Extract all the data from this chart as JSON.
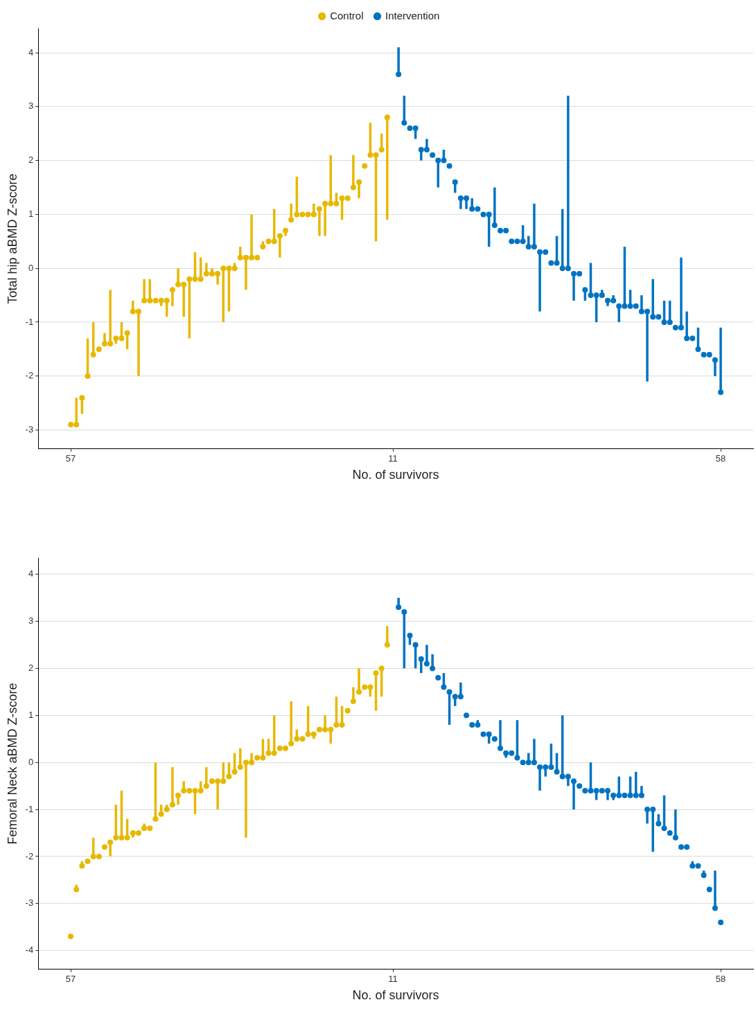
{
  "chart_data": [
    {
      "type": "scatter",
      "xlabel": "No. of survivors",
      "ylabel": "Total hip aBMD Z-score",
      "legend": "top",
      "grid": "y",
      "marker": "circle",
      "ylim": [
        -3.35,
        4.45
      ],
      "yticks": [
        -3,
        -2,
        -1,
        0,
        1,
        2,
        3,
        4
      ],
      "categories": [
        "57",
        null,
        null,
        null,
        null,
        null,
        null,
        null,
        null,
        null,
        null,
        null,
        null,
        null,
        null,
        null,
        null,
        null,
        null,
        null,
        null,
        null,
        null,
        null,
        null,
        null,
        null,
        null,
        null,
        null,
        null,
        null,
        null,
        null,
        null,
        null,
        null,
        null,
        null,
        null,
        null,
        null,
        null,
        null,
        null,
        null,
        null,
        null,
        null,
        null,
        null,
        null,
        null,
        null,
        null,
        null,
        null,
        "11",
        null,
        null,
        null,
        null,
        null,
        null,
        null,
        null,
        null,
        null,
        null,
        null,
        null,
        null,
        null,
        null,
        null,
        null,
        null,
        null,
        null,
        null,
        null,
        null,
        null,
        null,
        null,
        null,
        null,
        null,
        null,
        null,
        null,
        null,
        null,
        null,
        null,
        null,
        null,
        null,
        null,
        null,
        null,
        null,
        null,
        null,
        null,
        null,
        null,
        null,
        null,
        null,
        null,
        null,
        null,
        null,
        null,
        "58"
      ],
      "series": [
        {
          "name": "Control",
          "color": "#e7b800",
          "values": [
            -2.9,
            -2.9,
            -2.4,
            -2.0,
            -1.6,
            -1.5,
            -1.4,
            -1.4,
            -1.3,
            -1.3,
            -1.2,
            -0.8,
            -0.8,
            -0.6,
            -0.6,
            -0.6,
            -0.6,
            -0.6,
            -0.4,
            -0.3,
            -0.3,
            -0.2,
            -0.2,
            -0.2,
            -0.1,
            -0.1,
            -0.1,
            0.0,
            0.0,
            0.0,
            0.2,
            0.2,
            0.2,
            0.2,
            0.4,
            0.5,
            0.5,
            0.6,
            0.7,
            0.9,
            1.0,
            1.0,
            1.0,
            1.0,
            1.1,
            1.2,
            1.2,
            1.2,
            1.3,
            1.3,
            1.5,
            1.6,
            1.9,
            2.1,
            2.1,
            2.2,
            2.8,
            null,
            null,
            null,
            null,
            null,
            null,
            null,
            null,
            null,
            null,
            null,
            null,
            null,
            null,
            null,
            null,
            null,
            null,
            null,
            null,
            null,
            null,
            null,
            null,
            null,
            null,
            null,
            null,
            null,
            null,
            null,
            null,
            null,
            null,
            null,
            null,
            null,
            null,
            null,
            null,
            null,
            null,
            null,
            null,
            null,
            null,
            null,
            null,
            null,
            null,
            null,
            null,
            null,
            null,
            null,
            null,
            null,
            null,
            null
          ],
          "errors": [
            null,
            [
              -2.9,
              -2.4
            ],
            [
              -2.7,
              -2.4
            ],
            [
              -2.0,
              -1.3
            ],
            [
              -1.6,
              -1.0
            ],
            null,
            [
              -1.4,
              -1.2
            ],
            [
              -1.4,
              -0.4
            ],
            [
              -1.4,
              -1.3
            ],
            [
              -1.3,
              -1.0
            ],
            [
              -1.5,
              -1.2
            ],
            [
              -0.8,
              -0.6
            ],
            [
              -2.0,
              -0.8
            ],
            [
              -0.6,
              -0.2
            ],
            [
              -0.6,
              -0.2
            ],
            null,
            [
              -0.7,
              -0.6
            ],
            [
              -0.9,
              -0.6
            ],
            [
              -0.7,
              -0.4
            ],
            [
              -0.3,
              0.0
            ],
            [
              -0.9,
              -0.3
            ],
            [
              -1.3,
              -0.2
            ],
            [
              -0.2,
              0.3
            ],
            [
              -0.2,
              0.2
            ],
            [
              -0.1,
              0.1
            ],
            [
              -0.1,
              0.0
            ],
            [
              -0.3,
              -0.1
            ],
            [
              -1.0,
              0.0
            ],
            [
              -0.8,
              0.0
            ],
            [
              0.0,
              0.1
            ],
            [
              0.2,
              0.4
            ],
            [
              -0.4,
              0.2
            ],
            [
              0.2,
              1.0
            ],
            null,
            [
              0.4,
              0.5
            ],
            null,
            [
              0.5,
              1.1
            ],
            [
              0.2,
              0.6
            ],
            [
              0.6,
              0.7
            ],
            [
              0.9,
              1.2
            ],
            [
              1.0,
              1.7
            ],
            null,
            null,
            [
              1.0,
              1.2
            ],
            [
              0.6,
              1.1
            ],
            [
              0.6,
              1.2
            ],
            [
              1.2,
              2.1
            ],
            [
              1.2,
              1.4
            ],
            [
              0.9,
              1.3
            ],
            null,
            [
              1.5,
              2.1
            ],
            [
              1.3,
              1.6
            ],
            null,
            [
              2.1,
              2.7
            ],
            [
              0.5,
              2.1
            ],
            [
              2.2,
              2.5
            ],
            [
              0.9,
              2.8
            ],
            null,
            null,
            null,
            null,
            null,
            null,
            null,
            null,
            null,
            null,
            null,
            null,
            null,
            null,
            null,
            null,
            null,
            null,
            null,
            null,
            null,
            null,
            null,
            null,
            null,
            null,
            null,
            null,
            null,
            null,
            null,
            null,
            null,
            null,
            null,
            null,
            null,
            null,
            null,
            null,
            null,
            null,
            null,
            null,
            null,
            null,
            null,
            null,
            null,
            null,
            null,
            null,
            null,
            null,
            null,
            null,
            null,
            null,
            null
          ]
        },
        {
          "name": "Intervention",
          "color": "#0073c2",
          "values": [
            null,
            null,
            null,
            null,
            null,
            null,
            null,
            null,
            null,
            null,
            null,
            null,
            null,
            null,
            null,
            null,
            null,
            null,
            null,
            null,
            null,
            null,
            null,
            null,
            null,
            null,
            null,
            null,
            null,
            null,
            null,
            null,
            null,
            null,
            null,
            null,
            null,
            null,
            null,
            null,
            null,
            null,
            null,
            null,
            null,
            null,
            null,
            null,
            null,
            null,
            null,
            null,
            null,
            null,
            null,
            null,
            null,
            null,
            3.6,
            2.7,
            2.6,
            2.6,
            2.2,
            2.2,
            2.1,
            2.0,
            2.0,
            1.9,
            1.6,
            1.3,
            1.3,
            1.1,
            1.1,
            1.0,
            1.0,
            0.8,
            0.7,
            0.7,
            0.5,
            0.5,
            0.5,
            0.4,
            0.4,
            0.3,
            0.3,
            0.1,
            0.1,
            0.0,
            0.0,
            -0.1,
            -0.1,
            -0.4,
            -0.5,
            -0.5,
            -0.5,
            -0.6,
            -0.6,
            -0.7,
            -0.7,
            -0.7,
            -0.7,
            -0.8,
            -0.8,
            -0.9,
            -0.9,
            -1.0,
            -1.0,
            -1.1,
            -1.1,
            -1.3,
            -1.3,
            -1.5,
            -1.6,
            -1.6,
            -1.7,
            -2.3
          ],
          "errors": [
            null,
            null,
            null,
            null,
            null,
            null,
            null,
            null,
            null,
            null,
            null,
            null,
            null,
            null,
            null,
            null,
            null,
            null,
            null,
            null,
            null,
            null,
            null,
            null,
            null,
            null,
            null,
            null,
            null,
            null,
            null,
            null,
            null,
            null,
            null,
            null,
            null,
            null,
            null,
            null,
            null,
            null,
            null,
            null,
            null,
            null,
            null,
            null,
            null,
            null,
            null,
            null,
            null,
            null,
            null,
            null,
            null,
            null,
            [
              3.6,
              4.1
            ],
            [
              2.7,
              3.2
            ],
            null,
            [
              2.4,
              2.6
            ],
            [
              2.0,
              2.2
            ],
            [
              2.2,
              2.4
            ],
            null,
            [
              1.5,
              2.0
            ],
            [
              2.0,
              2.2
            ],
            null,
            [
              1.4,
              1.6
            ],
            [
              1.1,
              1.3
            ],
            [
              1.1,
              1.3
            ],
            [
              1.1,
              1.3
            ],
            null,
            null,
            [
              0.4,
              1.0
            ],
            [
              0.8,
              1.5
            ],
            null,
            null,
            null,
            null,
            [
              0.5,
              0.8
            ],
            [
              0.4,
              0.6
            ],
            [
              0.4,
              1.2
            ],
            [
              -0.8,
              0.3
            ],
            null,
            null,
            [
              0.1,
              0.6
            ],
            [
              0.0,
              1.1
            ],
            [
              0.0,
              3.2
            ],
            [
              -0.6,
              -0.1
            ],
            null,
            [
              -0.6,
              -0.4
            ],
            [
              -0.5,
              0.1
            ],
            [
              -1.0,
              -0.5
            ],
            [
              -0.5,
              -0.4
            ],
            [
              -0.7,
              -0.6
            ],
            [
              -0.6,
              -0.5
            ],
            [
              -1.0,
              -0.7
            ],
            [
              -0.7,
              0.4
            ],
            [
              -0.7,
              -0.4
            ],
            null,
            [
              -0.8,
              -0.5
            ],
            [
              -2.1,
              -0.8
            ],
            [
              -0.9,
              -0.2
            ],
            null,
            [
              -1.0,
              -0.6
            ],
            [
              -1.0,
              -0.6
            ],
            null,
            [
              -1.1,
              0.2
            ],
            [
              -1.3,
              -0.8
            ],
            null,
            [
              -1.5,
              -1.1
            ],
            null,
            null,
            [
              -2.0,
              -1.7
            ],
            [
              -2.3,
              -1.1
            ]
          ]
        }
      ]
    },
    {
      "type": "scatter",
      "xlabel": "No. of survivors",
      "ylabel": "Femoral Neck aBMD Z-score",
      "grid": "y",
      "marker": "circle",
      "ylim": [
        -4.4,
        4.35
      ],
      "yticks": [
        -4,
        -3,
        -2,
        -1,
        0,
        1,
        2,
        3,
        4
      ],
      "categories": [
        "57",
        null,
        null,
        null,
        null,
        null,
        null,
        null,
        null,
        null,
        null,
        null,
        null,
        null,
        null,
        null,
        null,
        null,
        null,
        null,
        null,
        null,
        null,
        null,
        null,
        null,
        null,
        null,
        null,
        null,
        null,
        null,
        null,
        null,
        null,
        null,
        null,
        null,
        null,
        null,
        null,
        null,
        null,
        null,
        null,
        null,
        null,
        null,
        null,
        null,
        null,
        null,
        null,
        null,
        null,
        null,
        null,
        "11",
        null,
        null,
        null,
        null,
        null,
        null,
        null,
        null,
        null,
        null,
        null,
        null,
        null,
        null,
        null,
        null,
        null,
        null,
        null,
        null,
        null,
        null,
        null,
        null,
        null,
        null,
        null,
        null,
        null,
        null,
        null,
        null,
        null,
        null,
        null,
        null,
        null,
        null,
        null,
        null,
        null,
        null,
        null,
        null,
        null,
        null,
        null,
        null,
        null,
        null,
        null,
        null,
        null,
        null,
        null,
        null,
        null,
        "58"
      ],
      "series": [
        {
          "color": "#e7b800",
          "values": [
            -3.7,
            -2.7,
            -2.2,
            -2.1,
            -2.0,
            -2.0,
            -1.8,
            -1.7,
            -1.6,
            -1.6,
            -1.6,
            -1.5,
            -1.5,
            -1.4,
            -1.4,
            -1.2,
            -1.1,
            -1.0,
            -0.9,
            -0.7,
            -0.6,
            -0.6,
            -0.6,
            -0.6,
            -0.5,
            -0.4,
            -0.4,
            -0.4,
            -0.3,
            -0.2,
            -0.1,
            0.0,
            0.0,
            0.1,
            0.1,
            0.2,
            0.2,
            0.3,
            0.3,
            0.4,
            0.5,
            0.5,
            0.6,
            0.6,
            0.7,
            0.7,
            0.7,
            0.8,
            0.8,
            1.1,
            1.3,
            1.5,
            1.6,
            1.6,
            1.9,
            2.0,
            2.5,
            null,
            null,
            null,
            null,
            null,
            null,
            null,
            null,
            null,
            null,
            null,
            null,
            null,
            null,
            null,
            null,
            null,
            null,
            null,
            null,
            null,
            null,
            null,
            null,
            null,
            null,
            null,
            null,
            null,
            null,
            null,
            null,
            null,
            null,
            null,
            null,
            null,
            null,
            null,
            null,
            null,
            null,
            null,
            null,
            null,
            null,
            null,
            null,
            null,
            null,
            null,
            null,
            null,
            null,
            null,
            null,
            null,
            null,
            null
          ],
          "errors": [
            null,
            [
              -2.7,
              -2.6
            ],
            [
              -2.2,
              -2.1
            ],
            null,
            [
              -2.0,
              -1.6
            ],
            null,
            null,
            [
              -2.0,
              -1.7
            ],
            [
              -1.6,
              -0.9
            ],
            [
              -1.6,
              -0.6
            ],
            [
              -1.6,
              -1.2
            ],
            [
              -1.6,
              -1.5
            ],
            null,
            [
              -1.4,
              -1.3
            ],
            null,
            [
              -1.2,
              0.0
            ],
            [
              -1.1,
              -0.9
            ],
            [
              -1.0,
              -0.9
            ],
            [
              -0.9,
              -0.1
            ],
            [
              -0.9,
              -0.7
            ],
            [
              -0.6,
              -0.4
            ],
            null,
            [
              -1.1,
              -0.6
            ],
            [
              -0.6,
              -0.4
            ],
            [
              -0.5,
              -0.1
            ],
            null,
            [
              -1.0,
              -0.4
            ],
            [
              -0.4,
              0.0
            ],
            [
              -0.3,
              0.0
            ],
            [
              -0.2,
              0.2
            ],
            [
              -0.1,
              0.3
            ],
            [
              -1.6,
              0.0
            ],
            [
              0.0,
              0.2
            ],
            null,
            [
              0.1,
              0.5
            ],
            [
              0.2,
              0.5
            ],
            [
              0.2,
              1.0
            ],
            null,
            null,
            [
              0.4,
              1.3
            ],
            [
              0.5,
              0.7
            ],
            null,
            [
              0.6,
              1.2
            ],
            [
              0.5,
              0.6
            ],
            null,
            [
              0.7,
              1.0
            ],
            [
              0.4,
              0.7
            ],
            [
              0.8,
              1.4
            ],
            [
              0.8,
              1.2
            ],
            null,
            [
              1.3,
              1.6
            ],
            [
              1.5,
              2.0
            ],
            null,
            [
              1.4,
              1.6
            ],
            [
              1.1,
              1.9
            ],
            [
              1.4,
              2.0
            ],
            [
              2.5,
              2.9
            ],
            null,
            null,
            null,
            null,
            null,
            null,
            null,
            null,
            null,
            null,
            null,
            null,
            null,
            null,
            null,
            null,
            null,
            null,
            null,
            null,
            null,
            null,
            null,
            null,
            null,
            null,
            null,
            null,
            null,
            null,
            null,
            null,
            null,
            null,
            null,
            null,
            null,
            null,
            null,
            null,
            null,
            null,
            null,
            null,
            null,
            null,
            null,
            null,
            null,
            null,
            null,
            null,
            null,
            null,
            null,
            null,
            null,
            null,
            null
          ]
        },
        {
          "color": "#0073c2",
          "values": [
            null,
            null,
            null,
            null,
            null,
            null,
            null,
            null,
            null,
            null,
            null,
            null,
            null,
            null,
            null,
            null,
            null,
            null,
            null,
            null,
            null,
            null,
            null,
            null,
            null,
            null,
            null,
            null,
            null,
            null,
            null,
            null,
            null,
            null,
            null,
            null,
            null,
            null,
            null,
            null,
            null,
            null,
            null,
            null,
            null,
            null,
            null,
            null,
            null,
            null,
            null,
            null,
            null,
            null,
            null,
            null,
            null,
            null,
            3.3,
            3.2,
            2.7,
            2.5,
            2.2,
            2.1,
            2.0,
            1.8,
            1.6,
            1.5,
            1.4,
            1.4,
            1.0,
            0.8,
            0.8,
            0.6,
            0.6,
            0.5,
            0.3,
            0.2,
            0.2,
            0.1,
            0.0,
            0.0,
            0.0,
            -0.1,
            -0.1,
            -0.1,
            -0.2,
            -0.3,
            -0.3,
            -0.4,
            -0.5,
            -0.6,
            -0.6,
            -0.6,
            -0.6,
            -0.6,
            -0.7,
            -0.7,
            -0.7,
            -0.7,
            -0.7,
            -0.7,
            -1.0,
            -1.0,
            -1.3,
            -1.4,
            -1.5,
            -1.6,
            -1.8,
            -1.8,
            -2.2,
            -2.2,
            -2.4,
            -2.7,
            -3.1,
            -3.4
          ],
          "errors": [
            null,
            null,
            null,
            null,
            null,
            null,
            null,
            null,
            null,
            null,
            null,
            null,
            null,
            null,
            null,
            null,
            null,
            null,
            null,
            null,
            null,
            null,
            null,
            null,
            null,
            null,
            null,
            null,
            null,
            null,
            null,
            null,
            null,
            null,
            null,
            null,
            null,
            null,
            null,
            null,
            null,
            null,
            null,
            null,
            null,
            null,
            null,
            null,
            null,
            null,
            null,
            null,
            null,
            null,
            null,
            null,
            null,
            null,
            [
              3.3,
              3.5
            ],
            [
              2.0,
              3.2
            ],
            [
              2.5,
              2.7
            ],
            [
              2.0,
              2.5
            ],
            [
              1.9,
              2.2
            ],
            [
              2.1,
              2.5
            ],
            [
              2.0,
              2.3
            ],
            null,
            [
              1.6,
              1.9
            ],
            [
              0.8,
              1.5
            ],
            [
              1.2,
              1.4
            ],
            [
              1.4,
              1.7
            ],
            null,
            null,
            [
              0.8,
              0.9
            ],
            null,
            [
              0.4,
              0.6
            ],
            null,
            [
              0.3,
              0.9
            ],
            [
              0.1,
              0.2
            ],
            null,
            [
              0.1,
              0.9
            ],
            null,
            [
              0.0,
              0.2
            ],
            [
              0.0,
              0.5
            ],
            [
              -0.6,
              -0.1
            ],
            [
              -0.3,
              -0.1
            ],
            [
              -0.1,
              0.4
            ],
            [
              -0.2,
              0.2
            ],
            [
              -0.3,
              1.0
            ],
            [
              -0.5,
              -0.3
            ],
            [
              -1.0,
              -0.4
            ],
            null,
            null,
            [
              -0.6,
              0.0
            ],
            [
              -0.8,
              -0.6
            ],
            null,
            [
              -0.8,
              -0.6
            ],
            [
              -0.8,
              -0.7
            ],
            [
              -0.7,
              -0.3
            ],
            null,
            [
              -0.7,
              -0.3
            ],
            [
              -0.7,
              -0.2
            ],
            [
              -0.7,
              -0.5
            ],
            [
              -1.3,
              -1.0
            ],
            [
              -1.9,
              -1.0
            ],
            [
              -1.3,
              -1.1
            ],
            [
              -1.4,
              -0.7
            ],
            null,
            [
              -1.6,
              -1.0
            ],
            null,
            null,
            [
              -2.2,
              -2.1
            ],
            null,
            [
              -2.4,
              -2.3
            ],
            null,
            [
              -3.1,
              -2.3
            ],
            null
          ]
        }
      ]
    }
  ]
}
